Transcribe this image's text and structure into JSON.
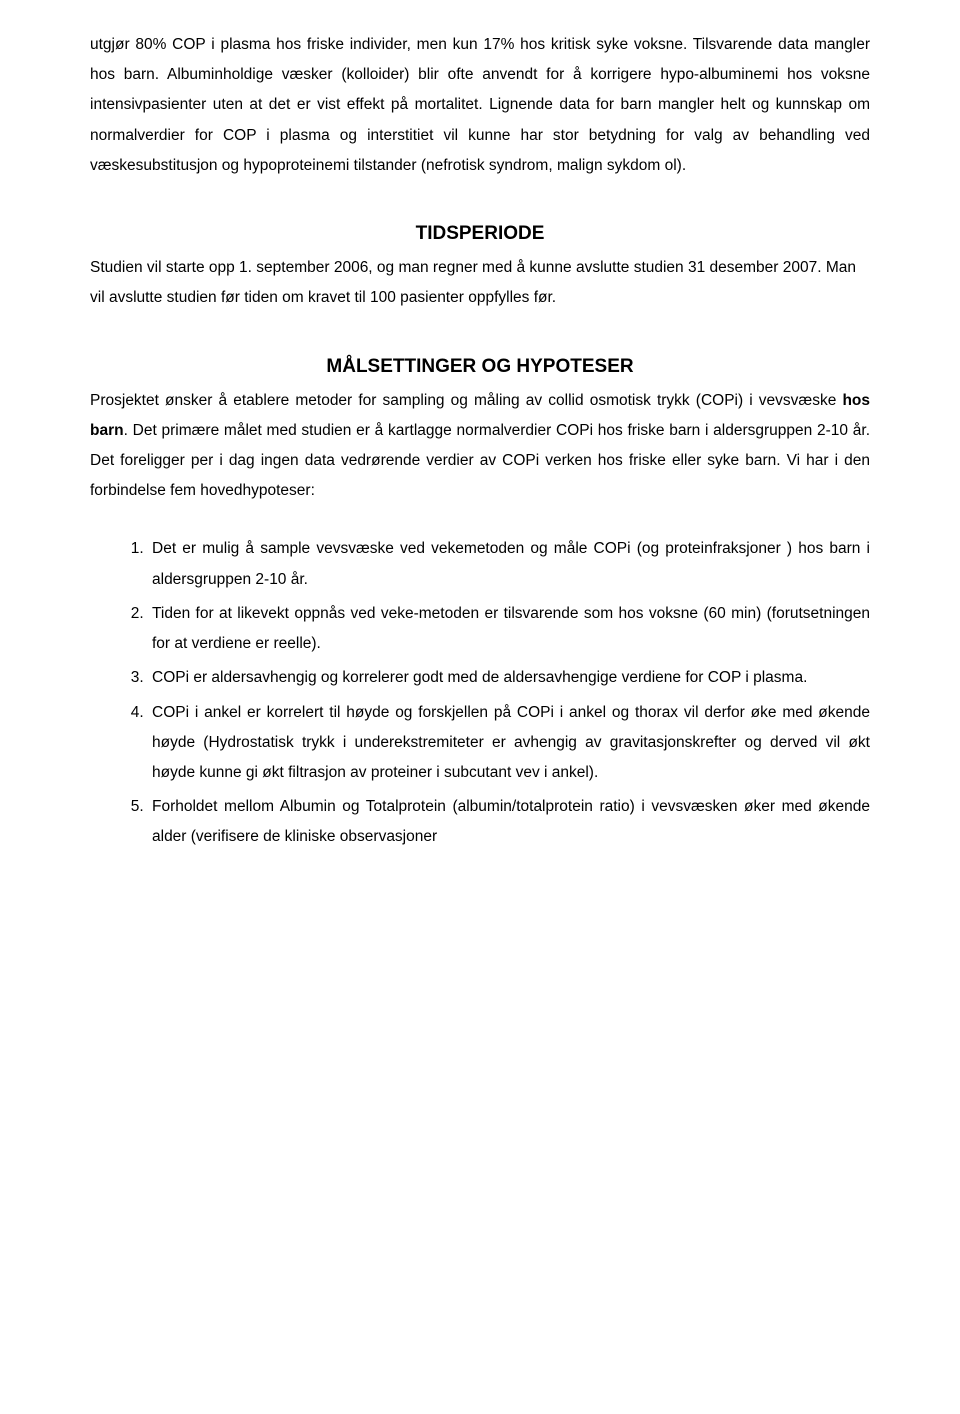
{
  "intro_para": "utgjør 80% COP i plasma hos friske individer, men kun 17% hos kritisk syke voksne. Tilsvarende data mangler hos barn. Albuminholdige væsker (kolloider) blir ofte anvendt for å korrigere hypo-albuminemi hos voksne intensivpasienter uten at det er vist effekt på mortalitet. Lignende data for barn mangler helt og kunnskap om normalverdier for COP i plasma og interstitiet vil kunne har stor betydning for valg av behandling ved væskesubstitusjon og hypoproteinemi tilstander (nefrotisk syndrom, malign sykdom ol).",
  "section1": {
    "heading": "TIDSPERIODE",
    "body": "Studien vil starte opp 1. september 2006, og man regner med å kunne avslutte studien 31 desember 2007. Man vil avslutte studien før tiden om kravet til 100 pasienter oppfylles før."
  },
  "section2": {
    "heading": "MÅLSETTINGER OG HYPOTESER",
    "body_pre": "Prosjektet ønsker å etablere metoder for sampling og måling av collid osmotisk trykk (COPi) i vevsvæske ",
    "body_bold": "hos barn",
    "body_post": ". Det primære målet med studien er å kartlagge normalverdier COPi hos friske barn i aldersgruppen 2-10 år. Det foreligger per i dag ingen data vedrørende verdier av COPi verken hos friske eller syke barn. Vi har i den forbindelse fem hovedhypoteser:",
    "items": [
      "Det er mulig å sample vevsvæske ved vekemetoden og måle COPi (og proteinfraksjoner ) hos barn i aldersgruppen 2-10 år.",
      "Tiden for at likevekt oppnås ved veke-metoden er tilsvarende som hos voksne (60 min) (forutsetningen for at verdiene er reelle).",
      "COPi er aldersavhengig og korrelerer godt med de aldersavhengige verdiene for COP i plasma.",
      "COPi i ankel er korrelert til høyde og forskjellen på COPi i ankel og thorax vil derfor øke med økende høyde (Hydrostatisk trykk i underekstremiteter er avhengig av gravitasjonskrefter og derved vil økt høyde kunne gi økt filtrasjon av proteiner i subcutant vev i ankel).",
      "Forholdet mellom Albumin og Totalprotein (albumin/totalprotein ratio) i vevsvæsken øker med økende alder (verifisere de kliniske observasjoner"
    ]
  }
}
